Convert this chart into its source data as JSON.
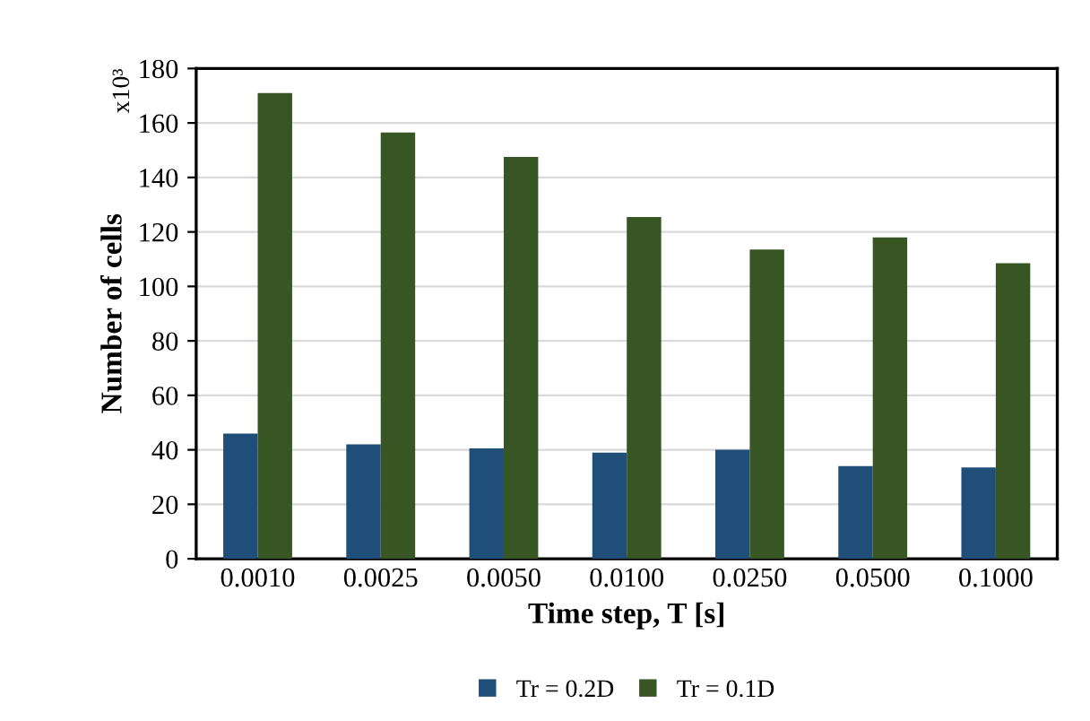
{
  "chart_data": {
    "type": "bar",
    "xlabel": "Time step, T [s]",
    "ylabel": "Number of cells",
    "categories": [
      "0.0010",
      "0.0025",
      "0.0050",
      "0.0100",
      "0.0250",
      "0.0500",
      "0.1000"
    ],
    "series": [
      {
        "name": "Tr = 0.2D",
        "color": "#1f4e79",
        "values": [
          46,
          42,
          40.5,
          39,
          40,
          34,
          33.5
        ]
      },
      {
        "name": "Tr = 0.1D",
        "color": "#375623",
        "values": [
          171,
          156.5,
          147.5,
          125.5,
          113.5,
          118,
          108.5
        ]
      }
    ],
    "ylim": [
      0,
      180
    ],
    "yticks": [
      0,
      20,
      40,
      60,
      80,
      100,
      120,
      140,
      160,
      180
    ],
    "annotations": [
      "x10³"
    ],
    "grid": "y",
    "legend": "bottom"
  }
}
